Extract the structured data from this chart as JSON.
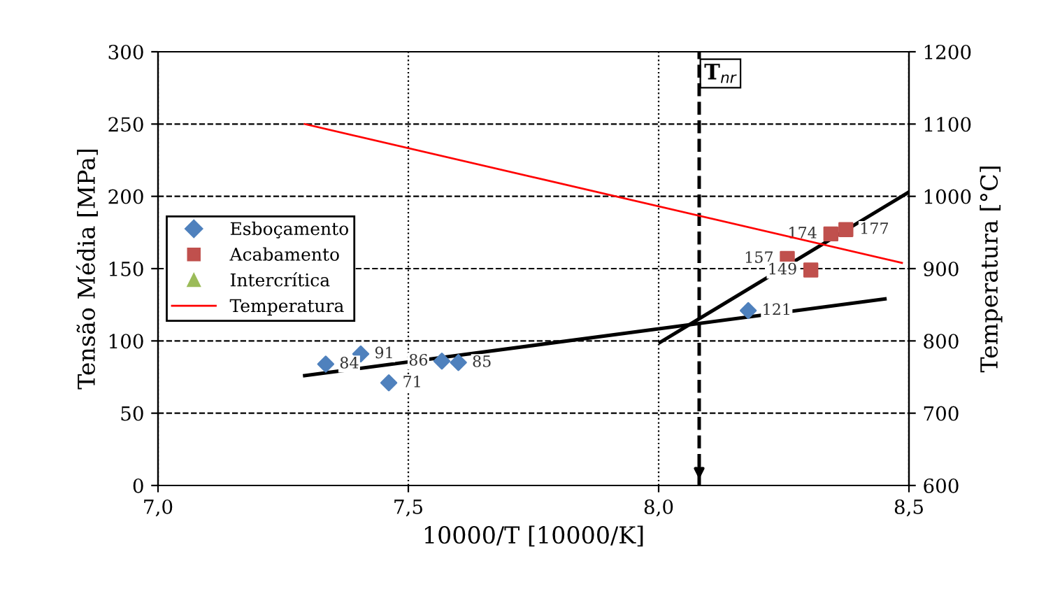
{
  "chart_data": {
    "type": "scatter",
    "xlabel": "10000/T [10000/K]",
    "ylabel": "Tensão Média [MPa]",
    "y2label": "Temperatura [°C]",
    "xlim": [
      7.0,
      8.5
    ],
    "xticks": [
      {
        "value": 7.0,
        "label": "7,0"
      },
      {
        "value": 7.5,
        "label": "7,5"
      },
      {
        "value": 8.0,
        "label": "8,0"
      },
      {
        "value": 8.5,
        "label": "8,5"
      }
    ],
    "ylim": [
      0,
      300
    ],
    "yticks": [
      0,
      50,
      100,
      150,
      200,
      250,
      300
    ],
    "y2lim": [
      600,
      1200
    ],
    "y2ticks": [
      600,
      700,
      800,
      900,
      1000,
      1100,
      1200
    ],
    "grid": true,
    "legend": "center left",
    "series": [
      {
        "name": "Esboçamento",
        "marker": "diamond",
        "color": "#4f81bd",
        "x": [
          7.335,
          7.405,
          7.461,
          7.567,
          7.6,
          8.179
        ],
        "values": [
          84,
          91,
          71,
          86,
          85,
          121
        ],
        "value_labels": [
          "84",
          "91",
          "71",
          "86",
          "85",
          "121"
        ]
      },
      {
        "name": "Acabamento",
        "marker": "square",
        "color": "#c0504d",
        "x": [
          8.257,
          8.304,
          8.344,
          8.374
        ],
        "values": [
          157,
          149,
          174,
          177
        ],
        "value_labels": [
          "157",
          "149",
          "174",
          "177"
        ]
      },
      {
        "name": "Intercrítica",
        "marker": "triangle",
        "color": "#9bbb59"
      },
      {
        "name": "Temperatura",
        "type": "line",
        "axis": "y2",
        "color": "#ff0000",
        "x": [
          7.293,
          8.486
        ],
        "values": [
          1100,
          908
        ]
      },
      {
        "type": "line",
        "color": "#000000",
        "x": [
          7.293,
          8.452
        ],
        "values": [
          76,
          129
        ]
      },
      {
        "type": "line",
        "color": "#000000",
        "x": [
          8.003,
          8.5
        ],
        "values": [
          99,
          203
        ]
      }
    ],
    "ref_lines": [
      {
        "axis": "x",
        "value": 8.081,
        "label": "T$_{nr}$",
        "color": "#000000",
        "line_style": "dashed"
      }
    ]
  }
}
